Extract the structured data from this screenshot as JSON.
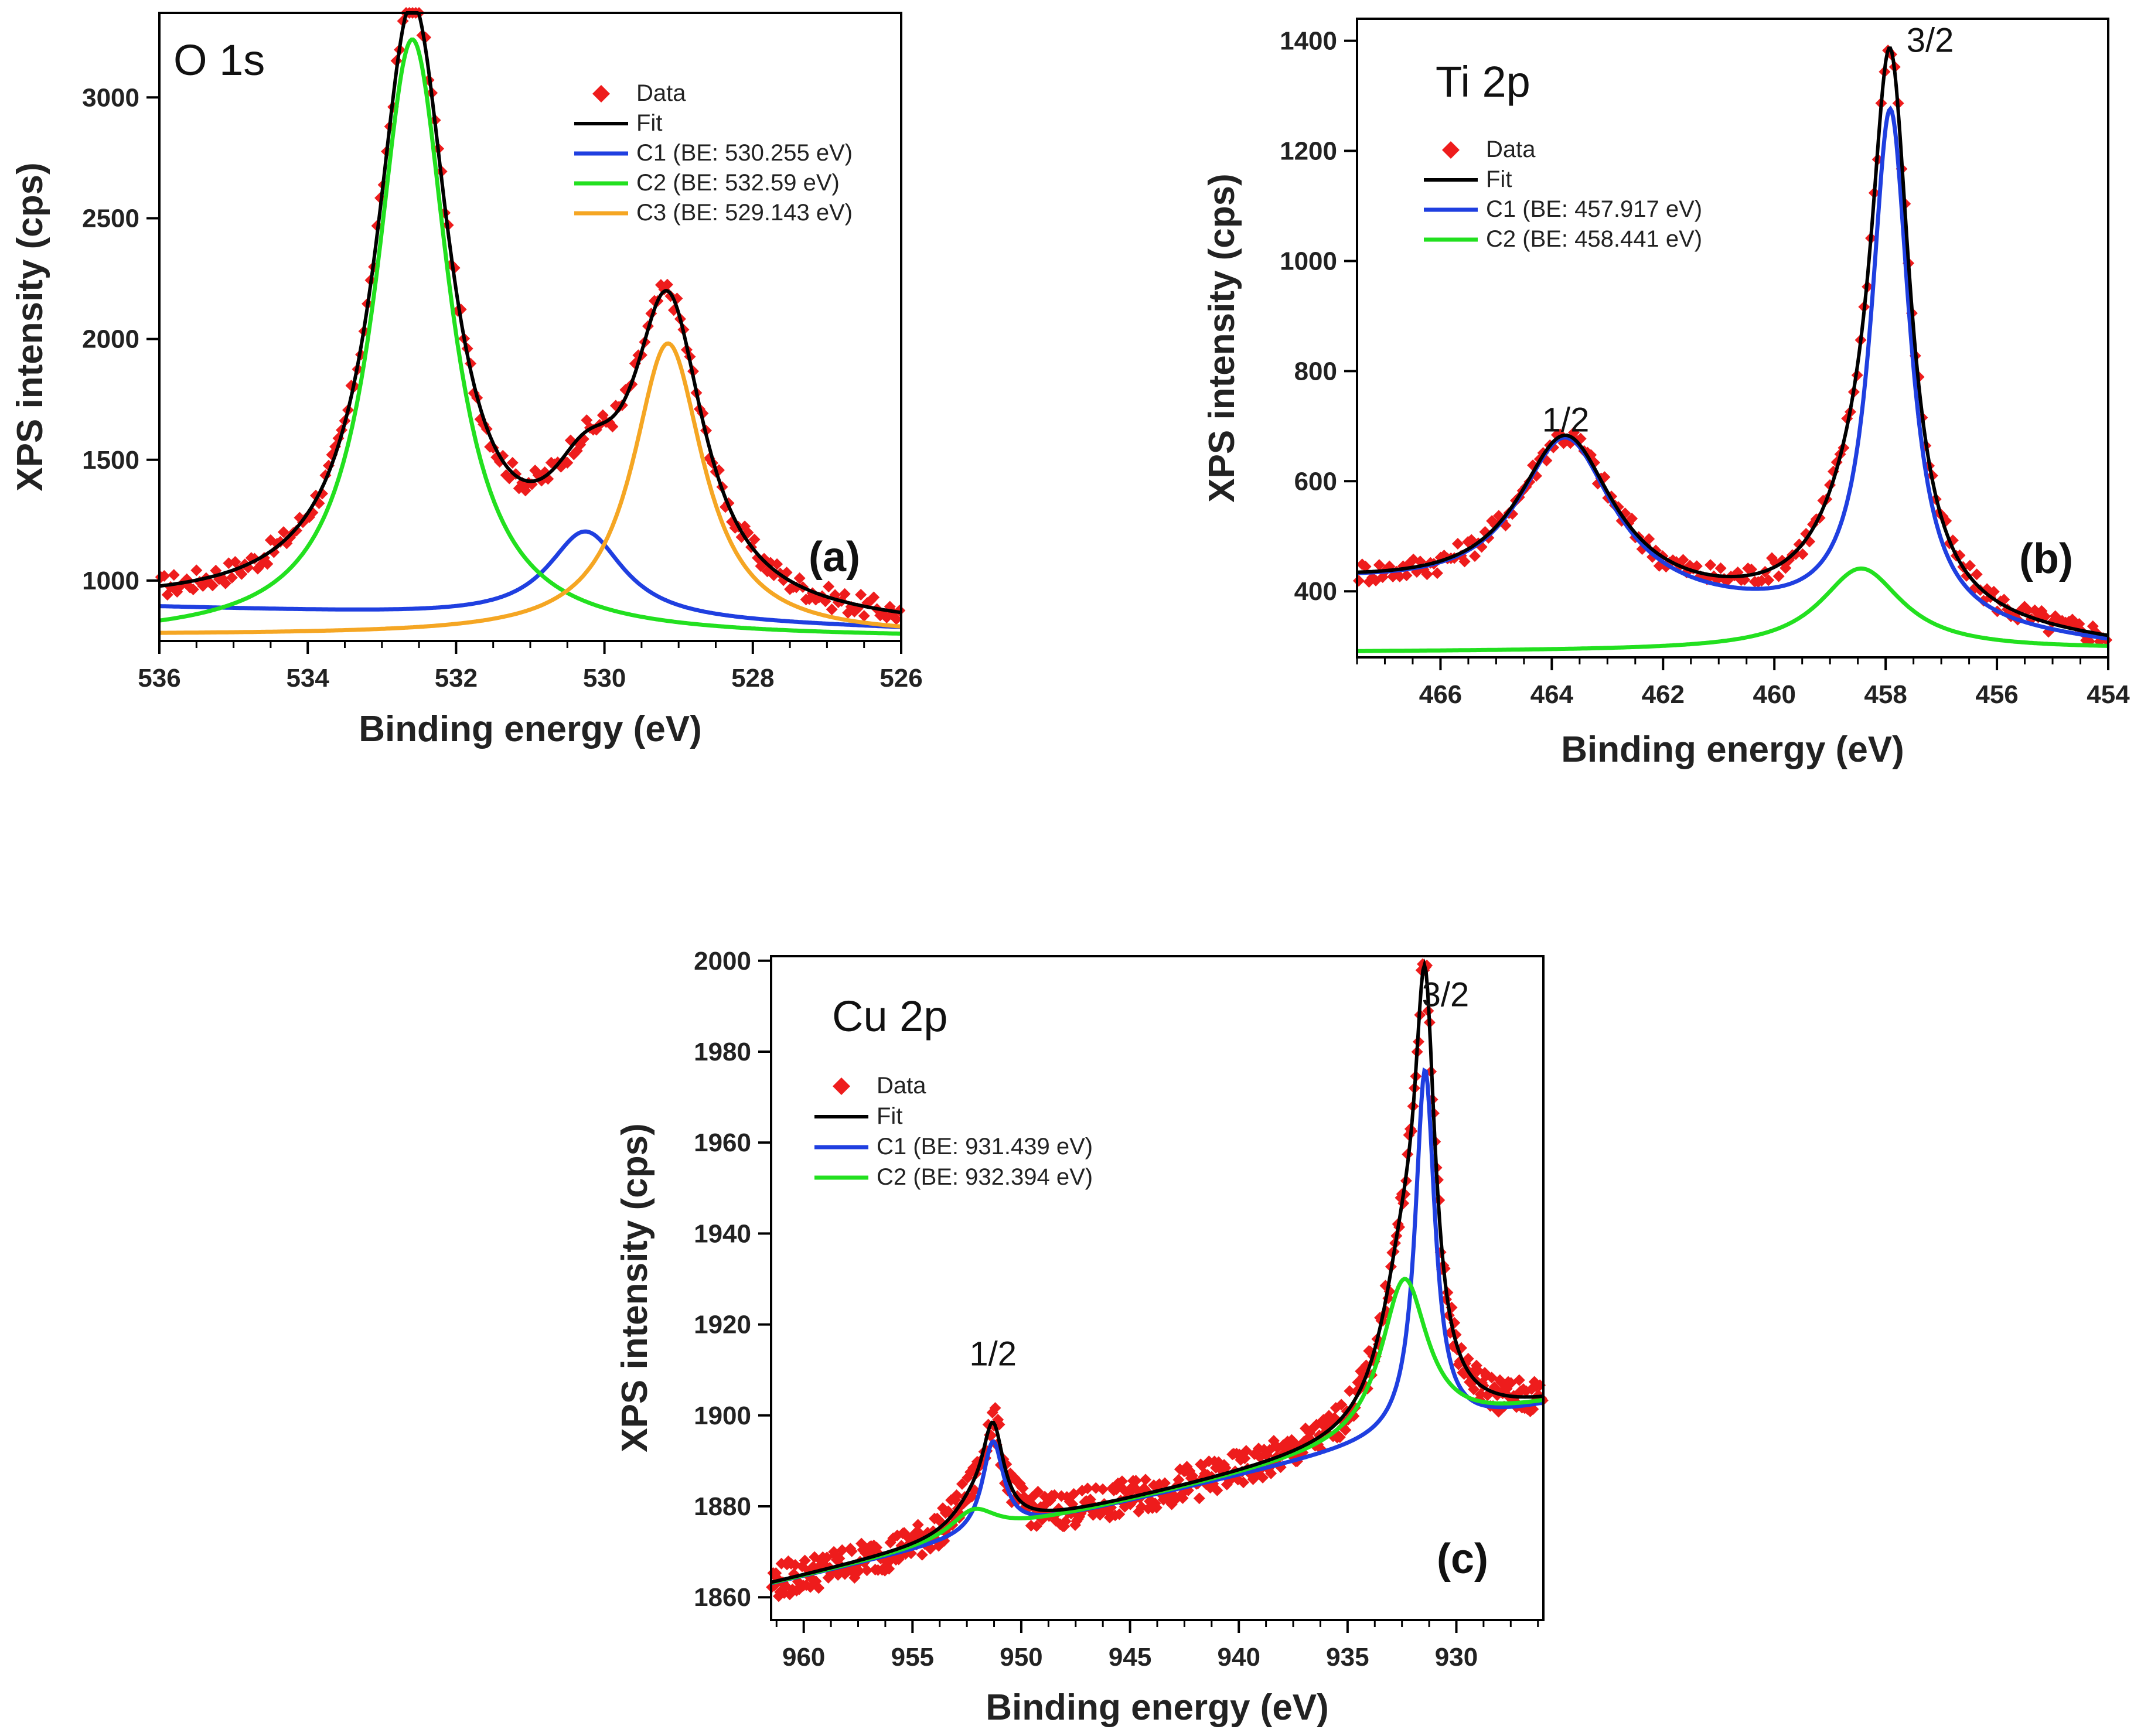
{
  "colors": {
    "data": "#ee1c1c",
    "fit": "#000000",
    "C1": "#1f3fe0",
    "C2": "#22e01f",
    "C3": "#f5a623"
  },
  "chart_data": [
    {
      "id": "a",
      "type": "scatter",
      "title": "O 1s",
      "panel_label": "(a)",
      "xlabel": "Binding energy (eV)",
      "ylabel": "XPS intensity (cps)",
      "xlim": [
        536,
        526
      ],
      "ylim": [
        750,
        3350
      ],
      "x_ticks": [
        536,
        534,
        532,
        530,
        528,
        526
      ],
      "x_tick_labels": [
        "536",
        "534",
        "532",
        "530",
        "528",
        "526"
      ],
      "y_ticks": [
        1000,
        1500,
        2000,
        2500,
        3000
      ],
      "y_tick_labels": [
        "1000",
        "1500",
        "2000",
        "2500",
        "3000"
      ],
      "legend_position": "top-right",
      "peak_labels": [],
      "series": [
        {
          "key": "data",
          "name": "Data",
          "kind": "markers"
        },
        {
          "key": "fit",
          "name": "Fit",
          "kind": "line"
        },
        {
          "key": "C1",
          "name": "C1 (BE: 530.255 eV)",
          "kind": "line",
          "center": 530.255,
          "amplitude": 365,
          "width": 0.62,
          "baseline": [
            890,
            800
          ]
        },
        {
          "key": "C2",
          "name": "C2 (BE: 532.59 eV)",
          "kind": "line",
          "center": 532.59,
          "amplitude": 2480,
          "width": 0.6,
          "baseline": [
            760,
            760
          ]
        },
        {
          "key": "C3",
          "name": "C3 (BE: 529.143 eV)",
          "kind": "line",
          "center": 529.143,
          "amplitude": 1210,
          "width": 0.58,
          "baseline": [
            775,
            770
          ]
        }
      ]
    },
    {
      "id": "b",
      "type": "scatter",
      "title": "Ti 2p",
      "panel_label": "(b)",
      "xlabel": "Binding energy (eV)",
      "ylabel": "XPS intensity (cps)",
      "xlim": [
        467.5,
        454
      ],
      "ylim": [
        280,
        1440
      ],
      "x_ticks": [
        466,
        464,
        462,
        460,
        458,
        456,
        454
      ],
      "x_tick_labels": [
        "466",
        "464",
        "462",
        "460",
        "458",
        "456",
        "454"
      ],
      "y_ticks": [
        400,
        600,
        800,
        1000,
        1200,
        1400
      ],
      "y_tick_labels": [
        "400",
        "600",
        "800",
        "1000",
        "1200",
        "1400"
      ],
      "legend_position": "top-left",
      "peak_labels": [
        {
          "text": "1/2",
          "x": 463.75,
          "y": 690
        },
        {
          "text": "3/2",
          "x": 457.2,
          "y": 1380
        }
      ],
      "series": [
        {
          "key": "data",
          "name": "Data",
          "kind": "markers"
        },
        {
          "key": "fit",
          "name": "Fit",
          "kind": "line"
        },
        {
          "key": "C1",
          "name": "C1 (BE: 457.917 eV)",
          "kind": "line",
          "peaks": [
            {
              "center": 457.917,
              "amplitude": 935,
              "width": 0.42
            },
            {
              "center": 463.75,
              "amplitude": 295,
              "width": 1.05
            }
          ],
          "baseline": [
            410,
            300
          ]
        },
        {
          "key": "C2",
          "name": "C2 (BE: 458.441 eV)",
          "kind": "line",
          "center": 458.441,
          "amplitude": 148,
          "width": 0.9,
          "baseline": [
            290,
            295
          ]
        }
      ]
    },
    {
      "id": "c",
      "type": "scatter",
      "title": "Cu 2p",
      "panel_label": "(c)",
      "xlabel": "Binding energy (eV)",
      "ylabel": "XPS intensity (cps)",
      "xlim": [
        961.5,
        926
      ],
      "ylim": [
        1855,
        2001
      ],
      "x_ticks": [
        960,
        955,
        950,
        945,
        940,
        935,
        930
      ],
      "x_tick_labels": [
        "960",
        "955",
        "950",
        "945",
        "940",
        "935",
        "930"
      ],
      "y_ticks": [
        1860,
        1880,
        1900,
        1920,
        1940,
        1960,
        1980,
        2000
      ],
      "y_tick_labels": [
        "1860",
        "1880",
        "1900",
        "1920",
        "1940",
        "1960",
        "1980",
        "2000"
      ],
      "legend_position": "top-left",
      "peak_labels": [
        {
          "text": "1/2",
          "x": 951.3,
          "y": 1911
        },
        {
          "text": "3/2",
          "x": 930.5,
          "y": 1990
        }
      ],
      "series": [
        {
          "key": "data",
          "name": "Data",
          "kind": "markers"
        },
        {
          "key": "fit",
          "name": "Fit",
          "kind": "line"
        },
        {
          "key": "C1",
          "name": "C1 (BE: 931.439 eV)",
          "kind": "line",
          "peaks": [
            {
              "center": 931.439,
              "amplitude": 80,
              "width": 0.55
            },
            {
              "center": 951.3,
              "amplitude": 20,
              "width": 0.6
            }
          ],
          "baseline": [
            1863,
            1902
          ]
        },
        {
          "key": "C2",
          "name": "C2 (BE: 932.394 eV)",
          "kind": "line",
          "peaks": [
            {
              "center": 932.394,
              "amplitude": 35,
              "width": 1.3
            },
            {
              "center": 952.2,
              "amplitude": 6,
              "width": 1.3
            }
          ],
          "baseline": [
            1863,
            1902
          ]
        }
      ]
    }
  ]
}
